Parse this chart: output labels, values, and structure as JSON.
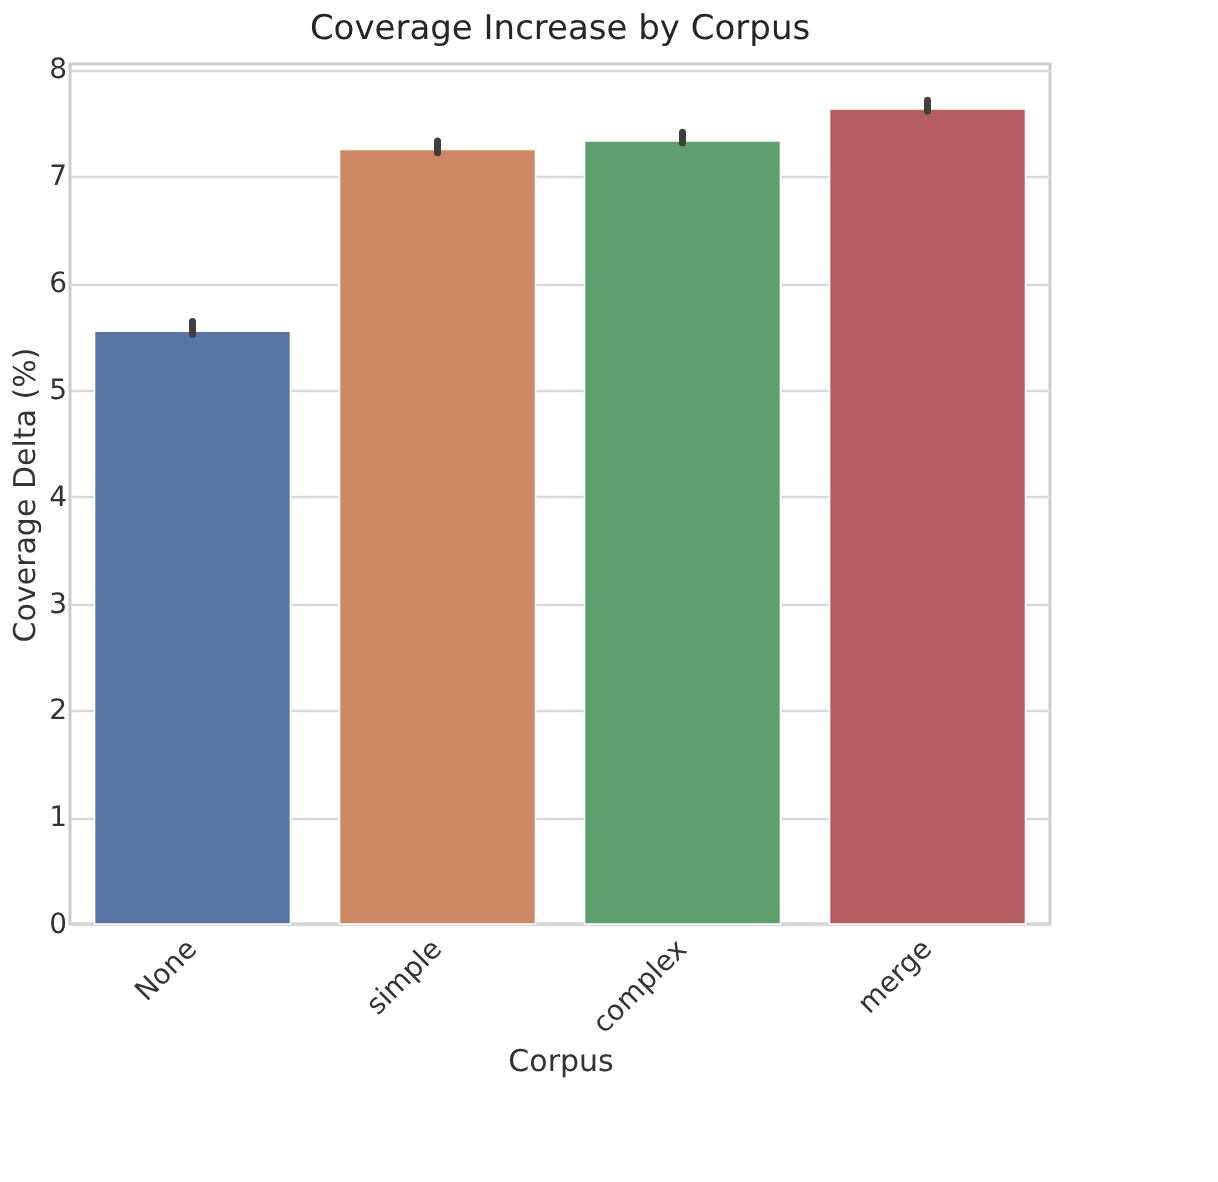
{
  "chart_data": {
    "type": "bar",
    "title": "Coverage Increase by Corpus",
    "xlabel": "Corpus",
    "ylabel": "Coverage Delta (%)",
    "categories": [
      "None",
      "simple",
      "complex",
      "merge"
    ],
    "values": [
      5.55,
      7.25,
      7.33,
      7.63
    ],
    "colors": [
      "#5975a4",
      "#cc8963",
      "#5f9e6e",
      "#b55d60"
    ],
    "errors": [
      [
        5.52,
        5.64
      ],
      [
        7.22,
        7.33
      ],
      [
        7.31,
        7.41
      ],
      [
        7.61,
        7.71
      ]
    ],
    "ylim": [
      0,
      8.05
    ],
    "yticks": [
      0,
      1,
      2,
      3,
      4,
      5,
      6,
      7,
      8
    ],
    "grid": "y"
  }
}
